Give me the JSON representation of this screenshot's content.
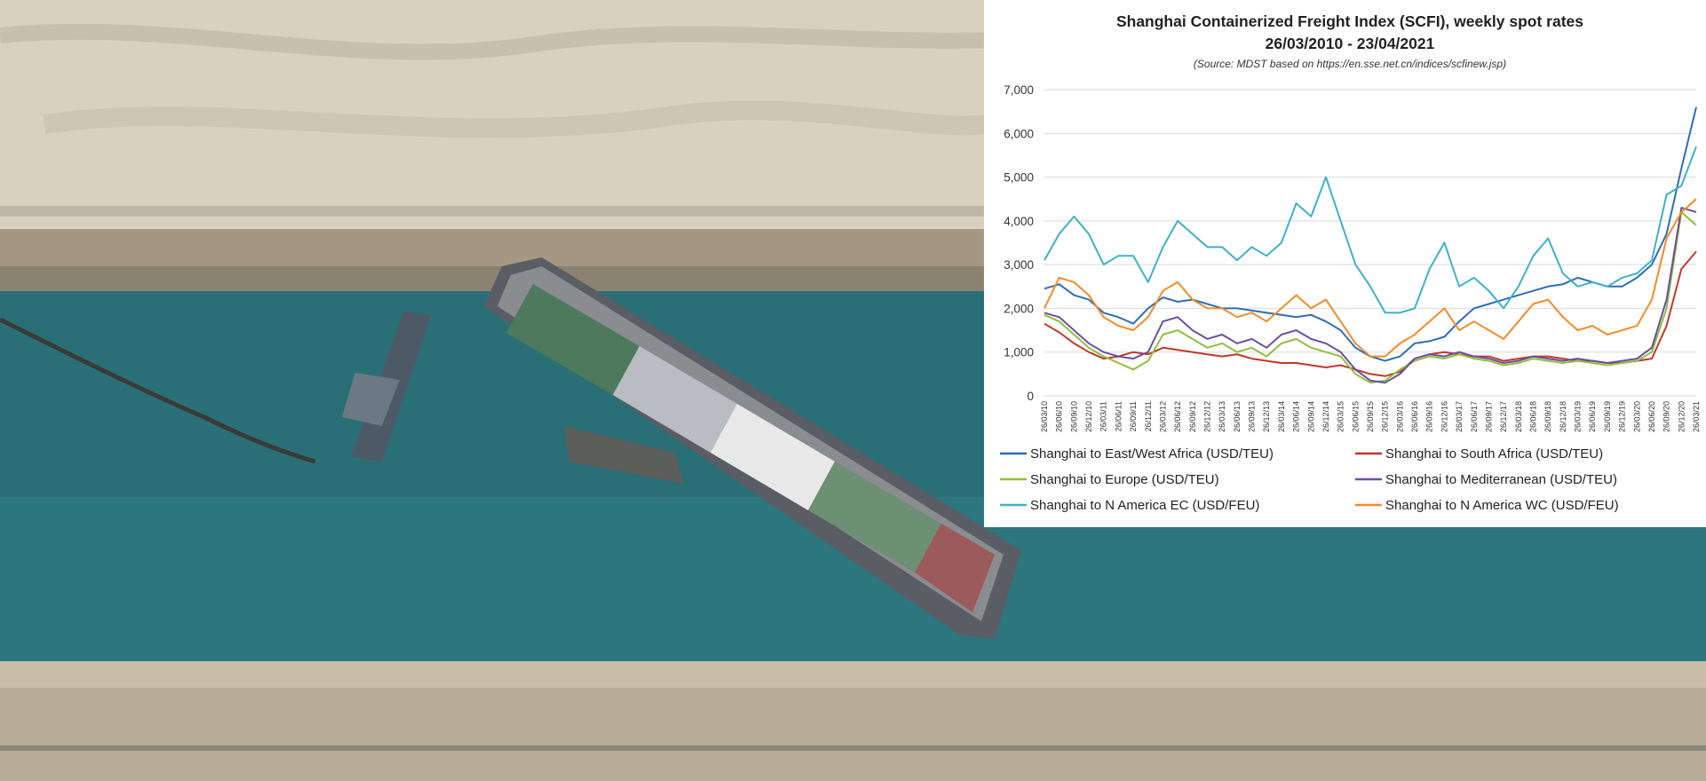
{
  "colors": {
    "east_west_africa": "#2e6db4",
    "south_africa": "#c0392b",
    "europe": "#8fbf3f",
    "mediterranean": "#6b4fa0",
    "n_america_ec": "#3fb0c8",
    "n_america_wc": "#f28c28",
    "grid": "#d9d9d9"
  },
  "chart_data": {
    "type": "line",
    "title": "Shanghai Containerized Freight Index (SCFI), weekly spot rates",
    "subtitle": "26/03/2010 - 23/04/2021",
    "source": "(Source: MDST based on https://en.sse.net.cn/indices/scfinew.jsp)",
    "xlabel": "",
    "ylabel": "",
    "ylim": [
      0,
      7000
    ],
    "yticks": [
      0,
      1000,
      2000,
      3000,
      4000,
      5000,
      6000,
      7000
    ],
    "ytick_labels": [
      "0",
      "1,000",
      "2,000",
      "3,000",
      "4,000",
      "5,000",
      "6,000",
      "7,000"
    ],
    "x_tick_labels": [
      "26/03/10",
      "26/06/10",
      "26/09/10",
      "26/12/10",
      "26/03/11",
      "26/06/11",
      "26/09/11",
      "26/12/11",
      "26/03/12",
      "26/06/12",
      "26/09/12",
      "26/12/12",
      "26/03/13",
      "26/06/13",
      "26/09/13",
      "26/12/13",
      "26/03/14",
      "26/06/14",
      "26/09/14",
      "26/12/14",
      "26/03/15",
      "26/06/15",
      "26/09/15",
      "26/12/15",
      "26/03/16",
      "26/06/16",
      "26/09/16",
      "26/12/16",
      "26/03/17",
      "26/06/17",
      "26/09/17",
      "26/12/17",
      "26/03/18",
      "26/06/18",
      "26/09/18",
      "26/12/18",
      "26/03/19",
      "26/06/19",
      "26/09/19",
      "26/12/19",
      "26/03/20",
      "26/06/20",
      "26/09/20",
      "26/12/20",
      "26/03/21"
    ],
    "grid": true,
    "legend_position": "bottom",
    "series": [
      {
        "name": "Shanghai to East/West Africa (USD/TEU)",
        "color_key": "east_west_africa",
        "values": [
          2450,
          2550,
          2300,
          2200,
          1900,
          1800,
          1650,
          2000,
          2250,
          2150,
          2200,
          2100,
          2000,
          2000,
          1950,
          1900,
          1850,
          1800,
          1850,
          1700,
          1500,
          1100,
          900,
          800,
          900,
          1200,
          1250,
          1350,
          1700,
          2000,
          2100,
          2200,
          2300,
          2400,
          2500,
          2550,
          2700,
          2600,
          2500,
          2500,
          2700,
          3000,
          3700,
          5200,
          6600
        ]
      },
      {
        "name": "Shanghai to South Africa (USD/TEU)",
        "color_key": "south_africa",
        "values": [
          1650,
          1450,
          1200,
          1000,
          850,
          900,
          1000,
          950,
          1100,
          1050,
          1000,
          950,
          900,
          950,
          850,
          800,
          750,
          750,
          700,
          650,
          700,
          600,
          500,
          450,
          550,
          850,
          950,
          1000,
          950,
          900,
          900,
          800,
          850,
          900,
          900,
          850,
          800,
          800,
          750,
          750,
          800,
          850,
          1600,
          2900,
          3300
        ]
      },
      {
        "name": "Shanghai to Europe (USD/TEU)",
        "color_key": "europe",
        "values": [
          1850,
          1700,
          1400,
          1100,
          900,
          750,
          600,
          800,
          1400,
          1500,
          1300,
          1100,
          1200,
          1000,
          1100,
          900,
          1200,
          1300,
          1100,
          1000,
          900,
          500,
          300,
          350,
          600,
          800,
          900,
          850,
          950,
          850,
          800,
          700,
          750,
          850,
          800,
          750,
          800,
          750,
          700,
          750,
          800,
          1000,
          2000,
          4200,
          3900
        ]
      },
      {
        "name": "Shanghai to Mediterranean (USD/TEU)",
        "color_key": "mediterranean",
        "values": [
          1900,
          1800,
          1500,
          1200,
          1000,
          900,
          850,
          1000,
          1700,
          1800,
          1500,
          1300,
          1400,
          1200,
          1300,
          1100,
          1400,
          1500,
          1300,
          1200,
          1000,
          600,
          350,
          300,
          500,
          850,
          950,
          900,
          1000,
          900,
          850,
          750,
          800,
          900,
          850,
          800,
          850,
          800,
          750,
          800,
          850,
          1100,
          2200,
          4300,
          4200
        ]
      },
      {
        "name": "Shanghai to N America EC (USD/FEU)",
        "color_key": "n_america_ec",
        "values": [
          3100,
          3700,
          4100,
          3700,
          3000,
          3200,
          3200,
          2600,
          3400,
          4000,
          3700,
          3400,
          3400,
          3100,
          3400,
          3200,
          3500,
          4400,
          4100,
          5000,
          4000,
          3000,
          2500,
          1900,
          1900,
          2000,
          2900,
          3500,
          2500,
          2700,
          2400,
          2000,
          2500,
          3200,
          3600,
          2800,
          2500,
          2600,
          2500,
          2700,
          2800,
          3100,
          4600,
          4800,
          5700
        ]
      },
      {
        "name": "Shanghai to N America WC (USD/FEU)",
        "color_key": "n_america_wc",
        "values": [
          2000,
          2700,
          2600,
          2300,
          1800,
          1600,
          1500,
          1800,
          2400,
          2600,
          2200,
          2000,
          2000,
          1800,
          1900,
          1700,
          2000,
          2300,
          2000,
          2200,
          1700,
          1200,
          900,
          900,
          1200,
          1400,
          1700,
          2000,
          1500,
          1700,
          1500,
          1300,
          1700,
          2100,
          2200,
          1800,
          1500,
          1600,
          1400,
          1500,
          1600,
          2200,
          3600,
          4200,
          4500
        ]
      }
    ]
  }
}
